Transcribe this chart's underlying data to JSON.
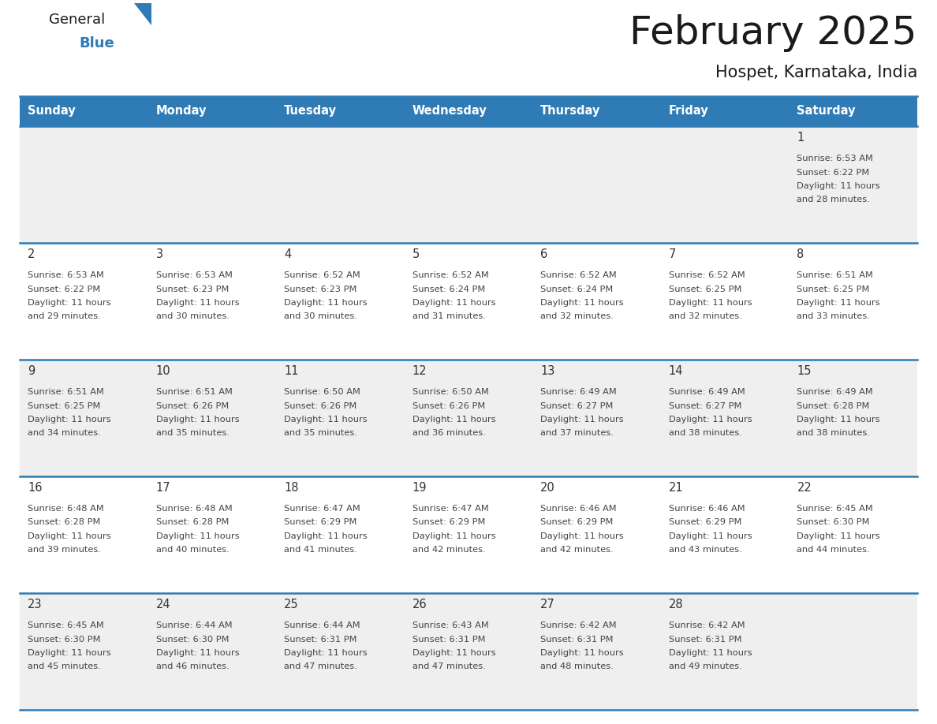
{
  "title": "February 2025",
  "subtitle": "Hospet, Karnataka, India",
  "header_bg_color": "#2E7BB5",
  "header_text_color": "#FFFFFF",
  "row_bg_colors": [
    "#EFEFEF",
    "#FFFFFF",
    "#EFEFEF",
    "#FFFFFF",
    "#EFEFEF"
  ],
  "day_number_color": "#333333",
  "cell_text_color": "#444444",
  "divider_color": "#2E7BB5",
  "days_of_week": [
    "Sunday",
    "Monday",
    "Tuesday",
    "Wednesday",
    "Thursday",
    "Friday",
    "Saturday"
  ],
  "calendar_data": [
    [
      null,
      null,
      null,
      null,
      null,
      null,
      {
        "day": 1,
        "sunrise": "6:53 AM",
        "sunset": "6:22 PM",
        "daylight_hours": 11,
        "daylight_minutes": 28
      }
    ],
    [
      {
        "day": 2,
        "sunrise": "6:53 AM",
        "sunset": "6:22 PM",
        "daylight_hours": 11,
        "daylight_minutes": 29
      },
      {
        "day": 3,
        "sunrise": "6:53 AM",
        "sunset": "6:23 PM",
        "daylight_hours": 11,
        "daylight_minutes": 30
      },
      {
        "day": 4,
        "sunrise": "6:52 AM",
        "sunset": "6:23 PM",
        "daylight_hours": 11,
        "daylight_minutes": 30
      },
      {
        "day": 5,
        "sunrise": "6:52 AM",
        "sunset": "6:24 PM",
        "daylight_hours": 11,
        "daylight_minutes": 31
      },
      {
        "day": 6,
        "sunrise": "6:52 AM",
        "sunset": "6:24 PM",
        "daylight_hours": 11,
        "daylight_minutes": 32
      },
      {
        "day": 7,
        "sunrise": "6:52 AM",
        "sunset": "6:25 PM",
        "daylight_hours": 11,
        "daylight_minutes": 32
      },
      {
        "day": 8,
        "sunrise": "6:51 AM",
        "sunset": "6:25 PM",
        "daylight_hours": 11,
        "daylight_minutes": 33
      }
    ],
    [
      {
        "day": 9,
        "sunrise": "6:51 AM",
        "sunset": "6:25 PM",
        "daylight_hours": 11,
        "daylight_minutes": 34
      },
      {
        "day": 10,
        "sunrise": "6:51 AM",
        "sunset": "6:26 PM",
        "daylight_hours": 11,
        "daylight_minutes": 35
      },
      {
        "day": 11,
        "sunrise": "6:50 AM",
        "sunset": "6:26 PM",
        "daylight_hours": 11,
        "daylight_minutes": 35
      },
      {
        "day": 12,
        "sunrise": "6:50 AM",
        "sunset": "6:26 PM",
        "daylight_hours": 11,
        "daylight_minutes": 36
      },
      {
        "day": 13,
        "sunrise": "6:49 AM",
        "sunset": "6:27 PM",
        "daylight_hours": 11,
        "daylight_minutes": 37
      },
      {
        "day": 14,
        "sunrise": "6:49 AM",
        "sunset": "6:27 PM",
        "daylight_hours": 11,
        "daylight_minutes": 38
      },
      {
        "day": 15,
        "sunrise": "6:49 AM",
        "sunset": "6:28 PM",
        "daylight_hours": 11,
        "daylight_minutes": 38
      }
    ],
    [
      {
        "day": 16,
        "sunrise": "6:48 AM",
        "sunset": "6:28 PM",
        "daylight_hours": 11,
        "daylight_minutes": 39
      },
      {
        "day": 17,
        "sunrise": "6:48 AM",
        "sunset": "6:28 PM",
        "daylight_hours": 11,
        "daylight_minutes": 40
      },
      {
        "day": 18,
        "sunrise": "6:47 AM",
        "sunset": "6:29 PM",
        "daylight_hours": 11,
        "daylight_minutes": 41
      },
      {
        "day": 19,
        "sunrise": "6:47 AM",
        "sunset": "6:29 PM",
        "daylight_hours": 11,
        "daylight_minutes": 42
      },
      {
        "day": 20,
        "sunrise": "6:46 AM",
        "sunset": "6:29 PM",
        "daylight_hours": 11,
        "daylight_minutes": 42
      },
      {
        "day": 21,
        "sunrise": "6:46 AM",
        "sunset": "6:29 PM",
        "daylight_hours": 11,
        "daylight_minutes": 43
      },
      {
        "day": 22,
        "sunrise": "6:45 AM",
        "sunset": "6:30 PM",
        "daylight_hours": 11,
        "daylight_minutes": 44
      }
    ],
    [
      {
        "day": 23,
        "sunrise": "6:45 AM",
        "sunset": "6:30 PM",
        "daylight_hours": 11,
        "daylight_minutes": 45
      },
      {
        "day": 24,
        "sunrise": "6:44 AM",
        "sunset": "6:30 PM",
        "daylight_hours": 11,
        "daylight_minutes": 46
      },
      {
        "day": 25,
        "sunrise": "6:44 AM",
        "sunset": "6:31 PM",
        "daylight_hours": 11,
        "daylight_minutes": 47
      },
      {
        "day": 26,
        "sunrise": "6:43 AM",
        "sunset": "6:31 PM",
        "daylight_hours": 11,
        "daylight_minutes": 47
      },
      {
        "day": 27,
        "sunrise": "6:42 AM",
        "sunset": "6:31 PM",
        "daylight_hours": 11,
        "daylight_minutes": 48
      },
      {
        "day": 28,
        "sunrise": "6:42 AM",
        "sunset": "6:31 PM",
        "daylight_hours": 11,
        "daylight_minutes": 49
      },
      null
    ]
  ],
  "logo_color_general": "#1a1a1a",
  "logo_color_blue": "#2E7BB5",
  "logo_triangle_color": "#2E7BB5",
  "fig_width": 11.88,
  "fig_height": 9.18,
  "dpi": 100
}
